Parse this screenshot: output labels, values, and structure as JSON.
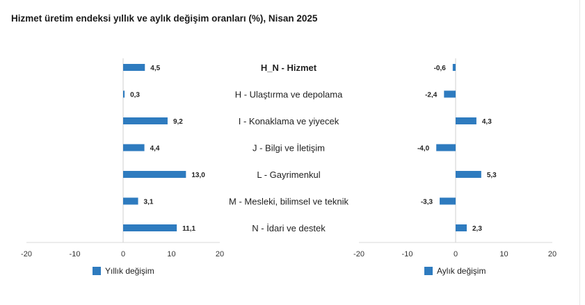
{
  "title": "Hizmet üretim endeksi yıllık ve aylık değişim oranları (%), Nisan 2025",
  "chart_data": [
    {
      "type": "bar",
      "orientation": "horizontal",
      "categories": [
        "H_N - Hizmet",
        "H - Ulaştırma ve depolama",
        "I - Konaklama ve yiyecek",
        "J - Bilgi ve İletişim",
        "L - Gayrimenkul",
        "M - Mesleki, bilimsel ve teknik",
        "N - İdari ve destek"
      ],
      "series": [
        {
          "name": "Yıllık değişim",
          "values": [
            4.5,
            0.3,
            9.2,
            4.4,
            13.0,
            3.1,
            11.1
          ],
          "labels": [
            "4,5",
            "0,3",
            "9,2",
            "4,4",
            "13,0",
            "3,1",
            "11,1"
          ]
        }
      ],
      "xlim": [
        -20,
        20
      ],
      "xticks": [
        "-20",
        "-10",
        "0",
        "10",
        "20"
      ],
      "grid": false,
      "legend": "bottom-left",
      "color": "#2e7bbf"
    },
    {
      "type": "bar",
      "orientation": "horizontal",
      "categories": [
        "H_N - Hizmet",
        "H - Ulaştırma ve depolama",
        "I - Konaklama ve yiyecek",
        "J - Bilgi ve İletişim",
        "L - Gayrimenkul",
        "M - Mesleki, bilimsel ve teknik",
        "N - İdari ve destek"
      ],
      "series": [
        {
          "name": "Aylık değişim",
          "values": [
            -0.6,
            -2.4,
            4.3,
            -4.0,
            5.3,
            -3.3,
            2.3
          ],
          "labels": [
            "-0,6",
            "-2,4",
            "4,3",
            "-4,0",
            "5,3",
            "-3,3",
            "2,3"
          ]
        }
      ],
      "xlim": [
        -20,
        20
      ],
      "xticks": [
        "-20",
        "-10",
        "0",
        "10",
        "20"
      ],
      "grid": false,
      "legend": "bottom-left",
      "color": "#2e7bbf"
    }
  ]
}
